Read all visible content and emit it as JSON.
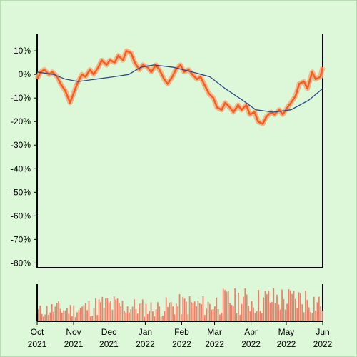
{
  "colors": {
    "background": "#dcf8d8",
    "price_line": "#ff5a1f",
    "price_band": "#f0b080",
    "moving_average": "#2b4a8a",
    "volume_bars": "#e8826a",
    "axes": "#000000"
  },
  "chart_data": [
    {
      "type": "line",
      "y_unit": "%",
      "ylim": [
        -82,
        17
      ],
      "yticks": [
        10,
        0,
        -10,
        -20,
        -30,
        -40,
        -50,
        -60,
        -70,
        -80
      ],
      "ytick_labels": [
        "10%",
        "0%",
        "-10%",
        "-20%",
        "-30%",
        "-40%",
        "-50%",
        "-60%",
        "-70%",
        "-80%"
      ],
      "xlim": [
        "2021-10-01",
        "2022-06-01"
      ],
      "grid": false,
      "series": [
        {
          "role": "price",
          "points": [
            [
              "2021-10-01",
              -2
            ],
            [
              "2021-10-04",
              1
            ],
            [
              "2021-10-07",
              2
            ],
            [
              "2021-10-11",
              0
            ],
            [
              "2021-10-14",
              1
            ],
            [
              "2021-10-18",
              -1
            ],
            [
              "2021-10-21",
              -4
            ],
            [
              "2021-10-25",
              -7
            ],
            [
              "2021-10-29",
              -12
            ],
            [
              "2021-11-01",
              -8
            ],
            [
              "2021-11-04",
              -4
            ],
            [
              "2021-11-08",
              0
            ],
            [
              "2021-11-11",
              -1
            ],
            [
              "2021-11-15",
              2
            ],
            [
              "2021-11-18",
              0
            ],
            [
              "2021-11-22",
              3
            ],
            [
              "2021-11-25",
              6
            ],
            [
              "2021-11-29",
              4
            ],
            [
              "2021-12-02",
              6
            ],
            [
              "2021-12-06",
              5
            ],
            [
              "2021-12-09",
              8
            ],
            [
              "2021-12-13",
              6
            ],
            [
              "2021-12-16",
              10
            ],
            [
              "2021-12-20",
              9
            ],
            [
              "2021-12-23",
              5
            ],
            [
              "2021-12-27",
              2
            ],
            [
              "2021-12-30",
              4
            ],
            [
              "2022-01-03",
              3
            ],
            [
              "2022-01-06",
              1
            ],
            [
              "2022-01-10",
              4
            ],
            [
              "2022-01-13",
              2
            ],
            [
              "2022-01-17",
              -2
            ],
            [
              "2022-01-20",
              -4
            ],
            [
              "2022-01-24",
              -1
            ],
            [
              "2022-01-27",
              2
            ],
            [
              "2022-01-31",
              4
            ],
            [
              "2022-02-03",
              1
            ],
            [
              "2022-02-07",
              2
            ],
            [
              "2022-02-10",
              0
            ],
            [
              "2022-02-14",
              -2
            ],
            [
              "2022-02-17",
              -1
            ],
            [
              "2022-02-21",
              -5
            ],
            [
              "2022-02-24",
              -8
            ],
            [
              "2022-02-28",
              -10
            ],
            [
              "2022-03-03",
              -14
            ],
            [
              "2022-03-07",
              -15
            ],
            [
              "2022-03-10",
              -12
            ],
            [
              "2022-03-14",
              -14
            ],
            [
              "2022-03-17",
              -16
            ],
            [
              "2022-03-21",
              -13
            ],
            [
              "2022-03-24",
              -15
            ],
            [
              "2022-03-28",
              -13
            ],
            [
              "2022-03-31",
              -17
            ],
            [
              "2022-04-04",
              -16
            ],
            [
              "2022-04-07",
              -20
            ],
            [
              "2022-04-11",
              -21
            ],
            [
              "2022-04-14",
              -18
            ],
            [
              "2022-04-18",
              -16
            ],
            [
              "2022-04-21",
              -17
            ],
            [
              "2022-04-25",
              -15
            ],
            [
              "2022-04-28",
              -17
            ],
            [
              "2022-05-02",
              -14
            ],
            [
              "2022-05-05",
              -12
            ],
            [
              "2022-05-09",
              -9
            ],
            [
              "2022-05-12",
              -4
            ],
            [
              "2022-05-16",
              -3
            ],
            [
              "2022-05-19",
              -6
            ],
            [
              "2022-05-23",
              1
            ],
            [
              "2022-05-26",
              -2
            ],
            [
              "2022-05-30",
              -1
            ],
            [
              "2022-06-01",
              3
            ]
          ]
        },
        {
          "role": "moving-average",
          "points": [
            [
              "2021-10-01",
              1
            ],
            [
              "2021-10-15",
              0
            ],
            [
              "2021-10-25",
              -2
            ],
            [
              "2021-11-05",
              -3
            ],
            [
              "2021-11-20",
              -2
            ],
            [
              "2021-12-05",
              -1
            ],
            [
              "2021-12-18",
              0
            ],
            [
              "2021-12-28",
              3
            ],
            [
              "2022-01-08",
              4
            ],
            [
              "2022-01-25",
              3
            ],
            [
              "2022-02-10",
              1
            ],
            [
              "2022-02-25",
              -1
            ],
            [
              "2022-03-10",
              -6
            ],
            [
              "2022-03-25",
              -11
            ],
            [
              "2022-04-05",
              -15
            ],
            [
              "2022-04-20",
              -16
            ],
            [
              "2022-05-05",
              -15
            ],
            [
              "2022-05-20",
              -11
            ],
            [
              "2022-06-01",
              -6
            ]
          ]
        }
      ]
    },
    {
      "type": "bar",
      "role": "volume",
      "x_range": [
        "2021-10-01",
        "2022-06-01"
      ],
      "xticks": [
        "2021-10-01",
        "2021-11-01",
        "2021-12-01",
        "2022-01-01",
        "2022-02-01",
        "2022-03-01",
        "2022-04-01",
        "2022-05-01",
        "2022-06-01"
      ],
      "xtick_labels": [
        [
          "Oct",
          "2021"
        ],
        [
          "Nov",
          "2021"
        ],
        [
          "Dec",
          "2021"
        ],
        [
          "Jan",
          "2022"
        ],
        [
          "Feb",
          "2022"
        ],
        [
          "Mar",
          "2022"
        ],
        [
          "Apr",
          "2022"
        ],
        [
          "May",
          "2022"
        ],
        [
          "Jun",
          "2022"
        ]
      ],
      "relative_levels": [
        0.35,
        0.45,
        0.4,
        0.5,
        0.6,
        0.55,
        0.5,
        0.45,
        0.55,
        0.6,
        0.55,
        0.7,
        0.75,
        0.7,
        0.8,
        0.75,
        0.8,
        0.6
      ]
    }
  ]
}
